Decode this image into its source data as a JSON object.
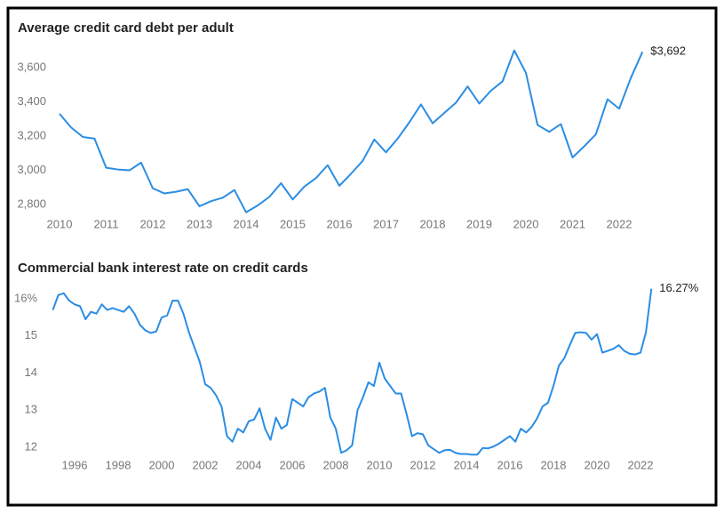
{
  "chart_data": [
    {
      "type": "line",
      "title": "Average credit card debt per adult",
      "x": [
        2010,
        2010.25,
        2010.5,
        2010.75,
        2011,
        2011.25,
        2011.5,
        2011.75,
        2012,
        2012.25,
        2012.5,
        2012.75,
        2013,
        2013.25,
        2013.5,
        2013.75,
        2014,
        2014.25,
        2014.5,
        2014.75,
        2015,
        2015.25,
        2015.5,
        2015.75,
        2016,
        2016.25,
        2016.5,
        2016.75,
        2017,
        2017.25,
        2017.5,
        2017.75,
        2018,
        2018.25,
        2018.5,
        2018.75,
        2019,
        2019.25,
        2019.5,
        2019.75,
        2020,
        2020.25,
        2020.5,
        2020.75,
        2021,
        2021.25,
        2021.5,
        2021.75,
        2022,
        2022.25,
        2022.5
      ],
      "series": [
        {
          "color": "#2b8de3",
          "values": [
            3330,
            3250,
            3195,
            3185,
            3015,
            3005,
            3000,
            3045,
            2895,
            2865,
            2875,
            2890,
            2790,
            2820,
            2840,
            2885,
            2755,
            2795,
            2845,
            2925,
            2830,
            2905,
            2955,
            3030,
            2910,
            2980,
            3055,
            3180,
            3105,
            3185,
            3280,
            3385,
            3275,
            3335,
            3395,
            3490,
            3390,
            3465,
            3520,
            3700,
            3570,
            3265,
            3225,
            3270,
            3075,
            3140,
            3210,
            3415,
            3360,
            3540,
            3692
          ]
        }
      ],
      "annotation": "$3,692",
      "xlim": [
        2009.8,
        2022.6
      ],
      "xticks": [
        2010,
        2011,
        2012,
        2013,
        2014,
        2015,
        2016,
        2017,
        2018,
        2019,
        2020,
        2021,
        2022
      ],
      "ylim": [
        2740,
        3720
      ],
      "yticks": [
        {
          "value": 2800,
          "label": "2,800"
        },
        {
          "value": 3000,
          "label": "3,000"
        },
        {
          "value": 3200,
          "label": "3,200"
        },
        {
          "value": 3400,
          "label": "3,400"
        },
        {
          "value": 3600,
          "label": "3,600"
        }
      ],
      "grid": false
    },
    {
      "type": "line",
      "title": "Commercial bank interest rate on credit cards",
      "x": [
        1995,
        1995.25,
        1995.5,
        1995.75,
        1996,
        1996.25,
        1996.5,
        1996.75,
        1997,
        1997.25,
        1997.5,
        1997.75,
        1998,
        1998.25,
        1998.5,
        1998.75,
        1999,
        1999.25,
        1999.5,
        1999.75,
        2000,
        2000.25,
        2000.5,
        2000.75,
        2001,
        2001.25,
        2001.5,
        2001.75,
        2002,
        2002.25,
        2002.5,
        2002.75,
        2003,
        2003.25,
        2003.5,
        2003.75,
        2004,
        2004.25,
        2004.5,
        2004.75,
        2005,
        2005.25,
        2005.5,
        2005.75,
        2006,
        2006.25,
        2006.5,
        2006.75,
        2007,
        2007.25,
        2007.5,
        2007.75,
        2008,
        2008.25,
        2008.5,
        2008.75,
        2009,
        2009.25,
        2009.5,
        2009.75,
        2010,
        2010.25,
        2010.5,
        2010.75,
        2011,
        2011.25,
        2011.5,
        2011.75,
        2012,
        2012.25,
        2012.5,
        2012.75,
        2013,
        2013.25,
        2013.5,
        2013.75,
        2014,
        2014.25,
        2014.5,
        2014.75,
        2015,
        2015.25,
        2015.5,
        2015.75,
        2016,
        2016.25,
        2016.5,
        2016.75,
        2017,
        2017.25,
        2017.5,
        2017.75,
        2018,
        2018.25,
        2018.5,
        2018.75,
        2019,
        2019.25,
        2019.5,
        2019.75,
        2020,
        2020.25,
        2020.5,
        2020.75,
        2021,
        2021.25,
        2021.5,
        2021.75,
        2022,
        2022.25,
        2022.5
      ],
      "series": [
        {
          "color": "#2b8de3",
          "values": [
            15.7,
            16.1,
            16.15,
            15.95,
            15.85,
            15.8,
            15.45,
            15.65,
            15.6,
            15.85,
            15.7,
            15.75,
            15.7,
            15.65,
            15.8,
            15.6,
            15.3,
            15.15,
            15.08,
            15.12,
            15.5,
            15.55,
            15.95,
            15.95,
            15.6,
            15.1,
            14.7,
            14.3,
            13.7,
            13.6,
            13.4,
            13.1,
            12.3,
            12.15,
            12.5,
            12.4,
            12.7,
            12.75,
            13.05,
            12.5,
            12.2,
            12.8,
            12.5,
            12.6,
            13.3,
            13.2,
            13.1,
            13.35,
            13.45,
            13.5,
            13.6,
            12.8,
            12.5,
            11.85,
            11.92,
            12.05,
            13.0,
            13.35,
            13.75,
            13.65,
            14.28,
            13.85,
            13.65,
            13.45,
            13.45,
            12.9,
            12.3,
            12.38,
            12.35,
            12.05,
            11.95,
            11.85,
            11.92,
            11.93,
            11.85,
            11.82,
            11.82,
            11.8,
            11.8,
            11.98,
            11.97,
            12.02,
            12.1,
            12.2,
            12.3,
            12.15,
            12.5,
            12.4,
            12.55,
            12.78,
            13.1,
            13.2,
            13.65,
            14.2,
            14.4,
            14.75,
            15.08,
            15.1,
            15.08,
            14.9,
            15.05,
            14.55,
            14.6,
            14.65,
            14.75,
            14.6,
            14.52,
            14.5,
            14.55,
            15.1,
            16.27
          ]
        }
      ],
      "annotation": "16.27%",
      "xlim": [
        1994.8,
        2022.6
      ],
      "xticks": [
        1996,
        1998,
        2000,
        2002,
        2004,
        2006,
        2008,
        2010,
        2012,
        2014,
        2016,
        2018,
        2020,
        2022
      ],
      "ylim": [
        11.75,
        16.3
      ],
      "yticks": [
        12,
        13,
        14,
        15,
        {
          "value": 16,
          "label": "16%"
        }
      ],
      "grid": false
    }
  ]
}
